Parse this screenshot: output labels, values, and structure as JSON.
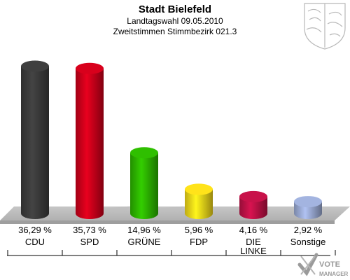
{
  "header": {
    "title": "Stadt Bielefeld",
    "subtitle1": "Landtagswahl 09.05.2010",
    "subtitle2": "Zweitstimmen Stimmbezirk 021.3"
  },
  "chart_data": {
    "type": "bar",
    "title": "Stadt Bielefeld",
    "categories": [
      "CDU",
      "SPD",
      "GRÜNE",
      "FDP",
      "DIE LINKE",
      "Sonstige"
    ],
    "category_lines": [
      [
        "CDU"
      ],
      [
        "SPD"
      ],
      [
        "GRÜNE"
      ],
      [
        "FDP"
      ],
      [
        "DIE",
        "LINKE"
      ],
      [
        "Sonstige"
      ]
    ],
    "values": [
      36.29,
      35.73,
      14.96,
      5.96,
      4.16,
      2.92
    ],
    "value_labels": [
      "36,29 %",
      "35,73 %",
      "14,96 %",
      "5,96 %",
      "4,16 %",
      "2,92 %"
    ],
    "colors": [
      "#3f3f3f",
      "#d8001c",
      "#2fbf00",
      "#ffe31a",
      "#c8124a",
      "#a3b4e0"
    ],
    "ylim": [
      0,
      40
    ],
    "grid": false,
    "legend": "none"
  },
  "branding": {
    "logo_text_1": "VOTE",
    "logo_text_2": "MANAGER"
  }
}
